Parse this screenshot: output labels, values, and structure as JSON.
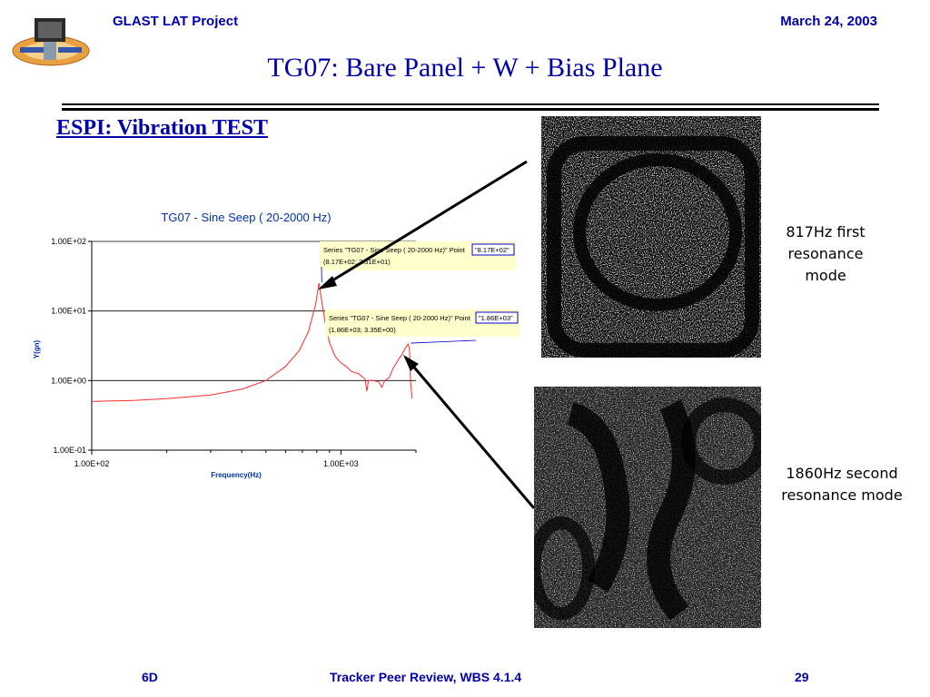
{
  "header": {
    "project": "GLAST LAT Project",
    "date": "March 24, 2003",
    "title": "TG07: Bare Panel  + W + Bias Plane",
    "subtitle": "ESPI: Vibration TEST"
  },
  "captions": {
    "mode1": "817Hz first resonance mode",
    "mode2": "1860Hz second resonance mode"
  },
  "footer": {
    "left": "6D",
    "center": "Tracker Peer Review, WBS 4.1.4",
    "page": "29"
  },
  "colors": {
    "heading": "#0000aa",
    "chart_title": "#0033aa",
    "series": "#ff2a2a",
    "annotation_bg": "#ffffcc"
  },
  "chart_data": {
    "type": "line",
    "title": "TG07 - Sine Seep ( 20-2000 Hz)",
    "xlabel": "Frequency(Hz)",
    "ylabel": "Y(gn)",
    "xscale": "log",
    "yscale": "log",
    "xlim": [
      100,
      2000
    ],
    "ylim": [
      0.1,
      100
    ],
    "xticks": [
      "1.00E+02",
      "1.00E+03"
    ],
    "yticks": [
      "1.00E-01",
      "1.00E+00",
      "1.00E+01",
      "1.00E+02"
    ],
    "grid": "horizontal",
    "series": [
      {
        "points": [
          [
            100,
            0.5
          ],
          [
            150,
            0.52
          ],
          [
            200,
            0.55
          ],
          [
            300,
            0.62
          ],
          [
            400,
            0.75
          ],
          [
            500,
            1.0
          ],
          [
            600,
            1.6
          ],
          [
            680,
            2.7
          ],
          [
            740,
            5.0
          ],
          [
            790,
            12.0
          ],
          [
            817,
            25.1
          ],
          [
            840,
            13.0
          ],
          [
            870,
            6.0
          ],
          [
            900,
            3.5
          ],
          [
            950,
            2.2
          ],
          [
            1000,
            1.8
          ],
          [
            1050,
            1.6
          ],
          [
            1100,
            1.35
          ],
          [
            1180,
            1.25
          ],
          [
            1250,
            1.05
          ],
          [
            1270,
            0.7
          ],
          [
            1290,
            1.0
          ],
          [
            1350,
            1.0
          ],
          [
            1420,
            0.95
          ],
          [
            1460,
            0.8
          ],
          [
            1500,
            1.0
          ],
          [
            1560,
            1.1
          ],
          [
            1620,
            1.5
          ],
          [
            1700,
            2.0
          ],
          [
            1760,
            2.4
          ],
          [
            1800,
            2.8
          ],
          [
            1860,
            3.35
          ],
          [
            1885,
            2.8
          ],
          [
            1905,
            0.9
          ],
          [
            1930,
            0.55
          ]
        ]
      }
    ],
    "annotations": [
      {
        "series_label": "Series \"TG07 - Sine Seep ( 20-2000 Hz)\" Point",
        "point_label": "\"8.17E+02\"",
        "value_label": "(8.17E+02; 2.51E+01)",
        "x": 817,
        "y": 25.1
      },
      {
        "series_label": "Series \"TG07 - Sine Seep ( 20-2000 Hz)\" Point",
        "point_label": "\"1.86E+03\"",
        "value_label": "(1.86E+03; 3.35E+00)",
        "x": 1860,
        "y": 3.35
      }
    ]
  }
}
